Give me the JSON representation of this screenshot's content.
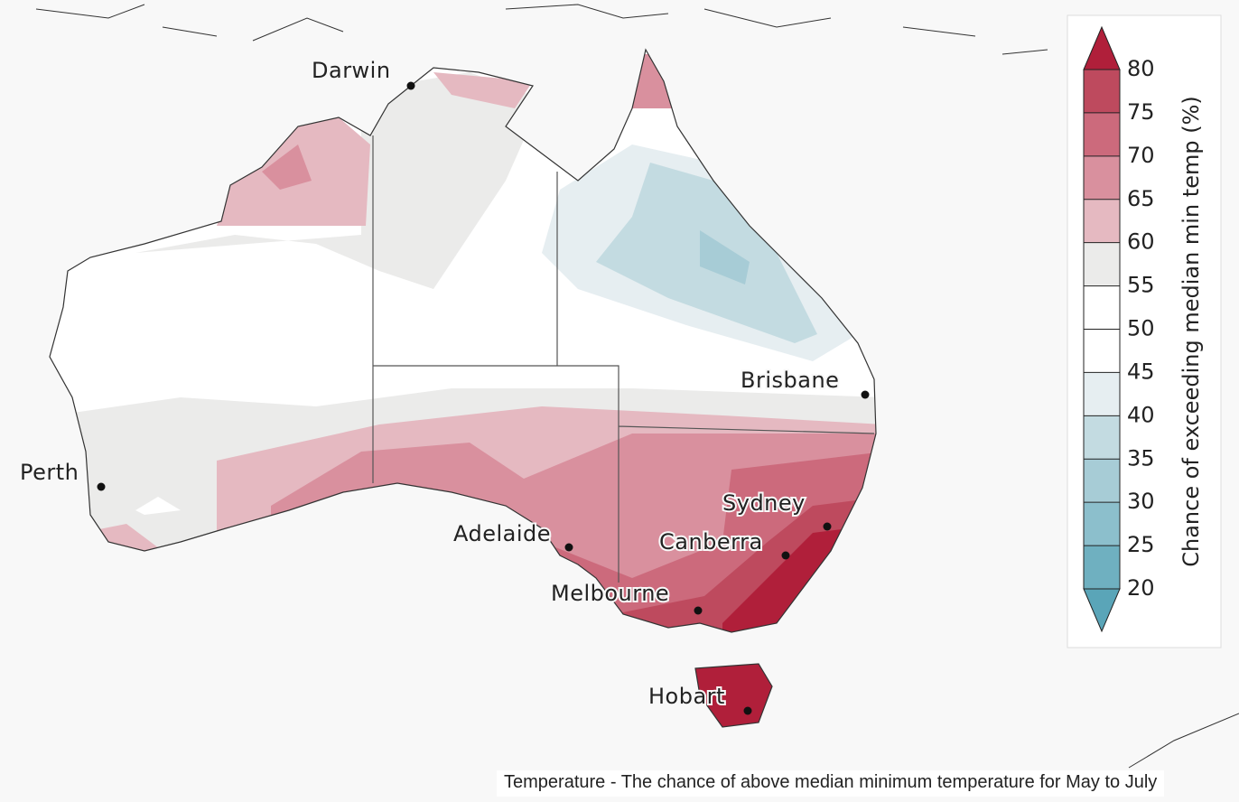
{
  "map": {
    "cities": [
      {
        "name": "Darwin"
      },
      {
        "name": "Brisbane"
      },
      {
        "name": "Perth"
      },
      {
        "name": "Sydney"
      },
      {
        "name": "Adelaide"
      },
      {
        "name": "Canberra"
      },
      {
        "name": "Melbourne"
      },
      {
        "name": "Hobart"
      }
    ],
    "legend": {
      "title": "Chance of exceeding median min temp (%)",
      "ticks": [
        20,
        25,
        30,
        35,
        40,
        45,
        50,
        55,
        60,
        65,
        70,
        75,
        80
      ],
      "colors": [
        "#6fb0c0",
        "#8cbfcc",
        "#a7ccd6",
        "#c3dbe1",
        "#e6eef1",
        "#ffffff",
        "#ffffff",
        "#ebebea",
        "#e5b9c1",
        "#d9909e",
        "#cc6a7c",
        "#be4a5e"
      ],
      "under_color": "#5aa5b8",
      "over_color": "#b01f3a"
    },
    "caption": "Temperature - The chance of above median minimum temperature for May to July"
  }
}
